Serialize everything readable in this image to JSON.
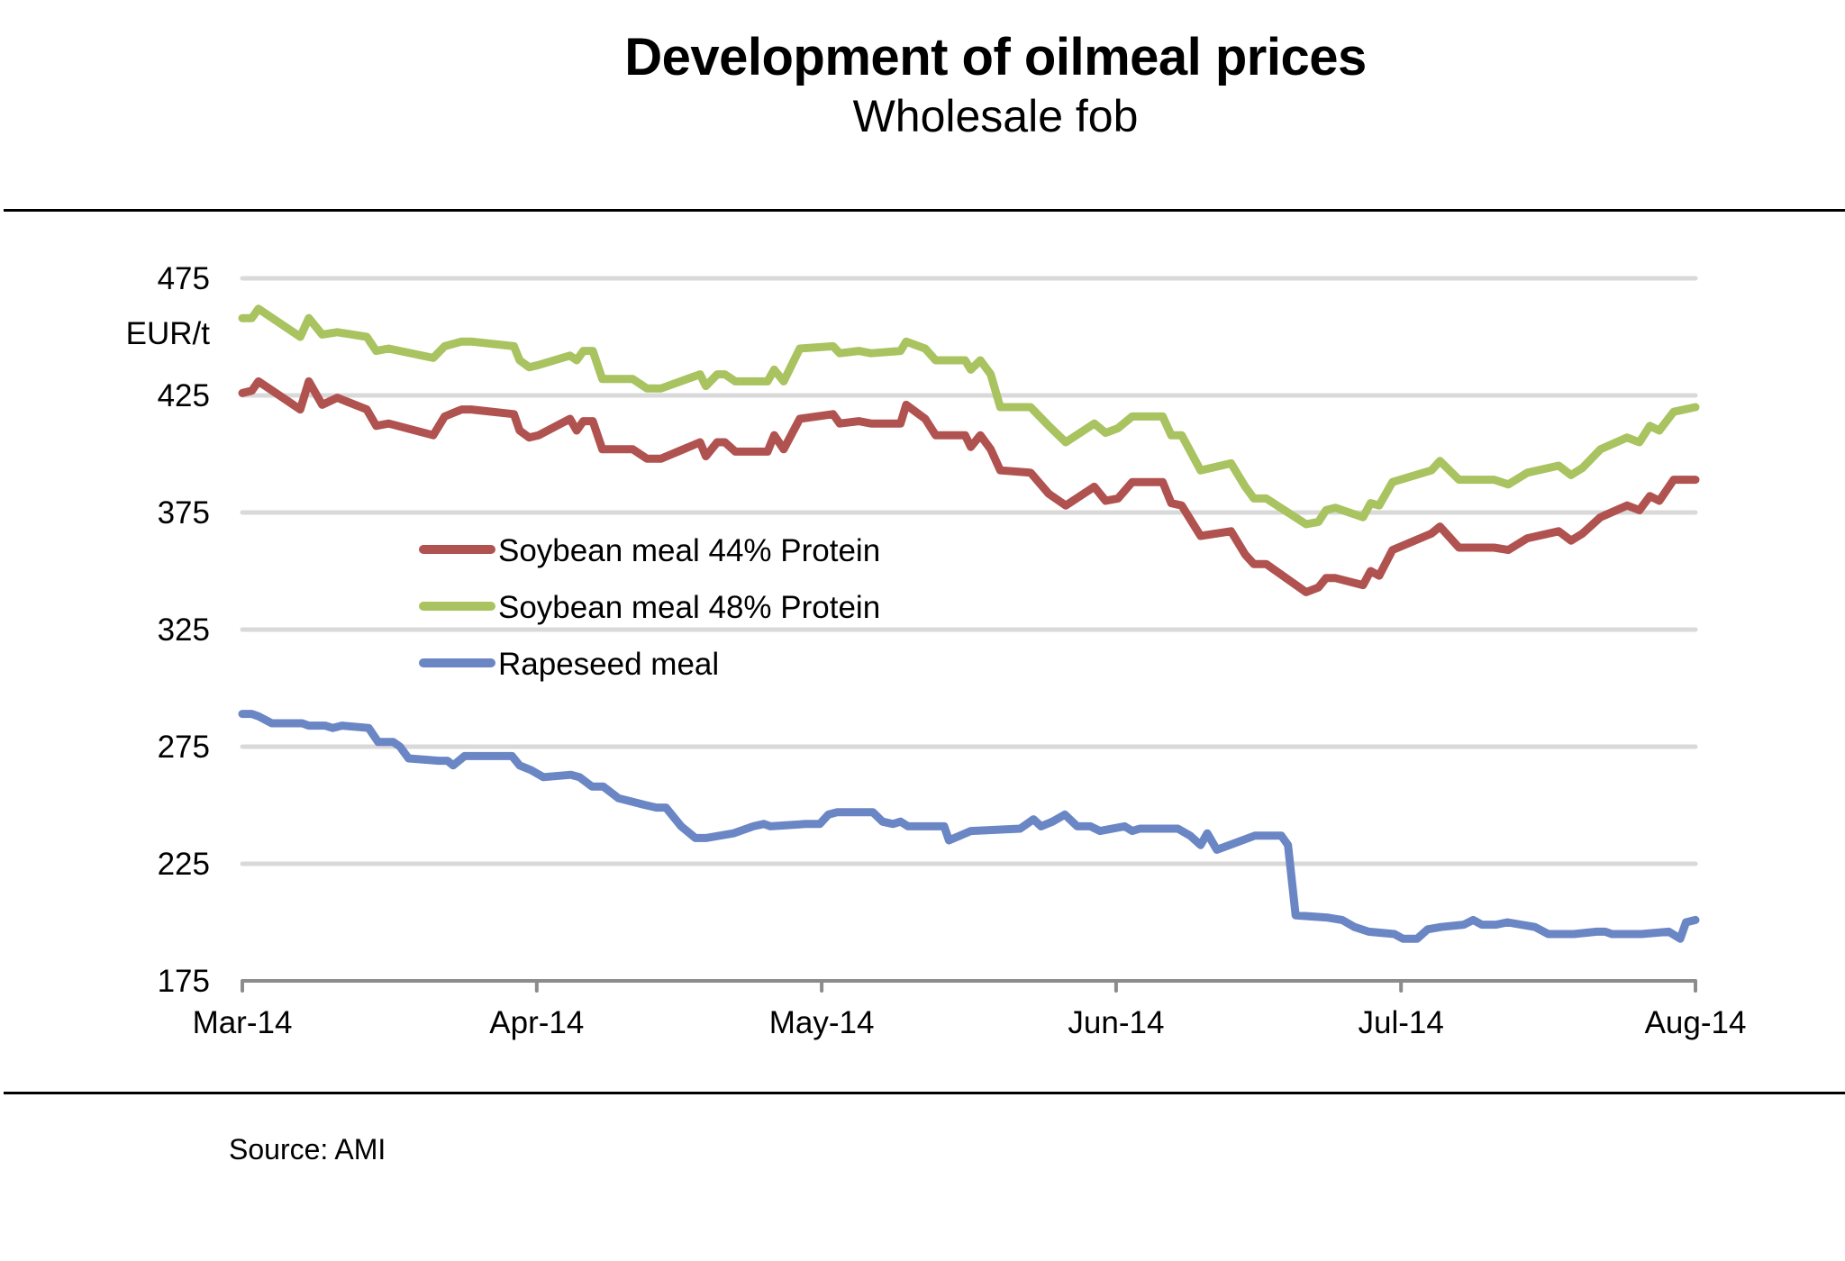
{
  "chart_data": {
    "type": "line",
    "title": "Development of oilmeal prices",
    "subtitle": "Wholesale fob",
    "ylabel": "EUR/t",
    "xlabel": "",
    "ylim": [
      175,
      475
    ],
    "yticks": [
      175,
      225,
      275,
      325,
      375,
      425,
      475
    ],
    "ytick_labels": [
      "175",
      "225",
      "275",
      "325",
      "375",
      "425",
      "475"
    ],
    "xlim_days": [
      0,
      153
    ],
    "xticks": [
      {
        "day": 0,
        "label": "Mar-14"
      },
      {
        "day": 31,
        "label": "Apr-14"
      },
      {
        "day": 61,
        "label": "May-14"
      },
      {
        "day": 92,
        "label": "Jun-14"
      },
      {
        "day": 122,
        "label": "Jul-14"
      },
      {
        "day": 153,
        "label": "Aug-14"
      }
    ],
    "grid": true,
    "legend_position": "center-left",
    "source": "Source: AMI",
    "series": [
      {
        "name": "Soybean meal 44% Protein",
        "color": "#b05250",
        "points": [
          [
            0,
            426
          ],
          [
            1,
            427
          ],
          [
            1.7,
            431
          ],
          [
            6.1,
            419
          ],
          [
            7,
            431
          ],
          [
            8.4,
            421
          ],
          [
            10,
            424
          ],
          [
            13.1,
            419
          ],
          [
            14.1,
            412
          ],
          [
            15.4,
            413
          ],
          [
            20.1,
            408
          ],
          [
            21.3,
            416
          ],
          [
            23.1,
            419
          ],
          [
            24.1,
            419
          ],
          [
            28.6,
            417
          ],
          [
            29.2,
            410
          ],
          [
            30.2,
            407
          ],
          [
            31.2,
            408
          ],
          [
            34.5,
            415
          ],
          [
            35.2,
            410
          ],
          [
            35.9,
            414
          ],
          [
            36.9,
            414
          ],
          [
            37.9,
            402
          ],
          [
            41.1,
            402
          ],
          [
            42.6,
            398
          ],
          [
            44.1,
            398
          ],
          [
            48.2,
            405
          ],
          [
            48.8,
            399
          ],
          [
            50,
            405
          ],
          [
            50.8,
            405
          ],
          [
            51.9,
            401
          ],
          [
            55.3,
            401
          ],
          [
            56,
            408
          ],
          [
            57,
            402
          ],
          [
            58.7,
            415
          ],
          [
            62.2,
            417
          ],
          [
            62.9,
            413
          ],
          [
            64.9,
            414
          ],
          [
            66.2,
            413
          ],
          [
            69.3,
            413
          ],
          [
            69.9,
            421
          ],
          [
            71.9,
            415
          ],
          [
            73,
            408
          ],
          [
            76.1,
            408
          ],
          [
            76.7,
            403
          ],
          [
            77.7,
            408
          ],
          [
            78.8,
            402
          ],
          [
            79.8,
            393
          ],
          [
            83,
            392
          ],
          [
            84.9,
            383
          ],
          [
            86.7,
            378
          ],
          [
            89.7,
            386
          ],
          [
            90.9,
            380
          ],
          [
            92.2,
            381
          ],
          [
            93.7,
            388
          ],
          [
            96.9,
            388
          ],
          [
            97.8,
            379
          ],
          [
            98.9,
            378
          ],
          [
            100.9,
            365
          ],
          [
            104.1,
            367
          ],
          [
            105.6,
            357
          ],
          [
            106.5,
            353
          ],
          [
            107.8,
            353
          ],
          [
            112,
            341
          ],
          [
            113.3,
            343
          ],
          [
            114.1,
            347
          ],
          [
            115.1,
            347
          ],
          [
            118,
            344
          ],
          [
            118.8,
            350
          ],
          [
            119.7,
            348
          ],
          [
            121.1,
            359
          ],
          [
            125.2,
            366
          ],
          [
            126.1,
            369
          ],
          [
            128.1,
            360
          ],
          [
            131.8,
            360
          ],
          [
            133.3,
            359
          ],
          [
            135.3,
            364
          ],
          [
            138.6,
            367
          ],
          [
            139.9,
            363
          ],
          [
            141.1,
            366
          ],
          [
            143,
            373
          ],
          [
            145.8,
            378
          ],
          [
            147.1,
            376
          ],
          [
            148.2,
            382
          ],
          [
            149.2,
            380
          ],
          [
            150.7,
            389
          ],
          [
            153,
            389
          ]
        ]
      },
      {
        "name": "Soybean meal 48% Protein",
        "color": "#a8c35f",
        "points": [
          [
            0,
            458
          ],
          [
            1,
            458
          ],
          [
            1.7,
            462
          ],
          [
            6.1,
            450
          ],
          [
            7,
            458
          ],
          [
            8.4,
            451
          ],
          [
            10,
            452
          ],
          [
            13.1,
            450
          ],
          [
            14.1,
            444
          ],
          [
            15.4,
            445
          ],
          [
            20.1,
            441
          ],
          [
            21.3,
            446
          ],
          [
            23.1,
            448
          ],
          [
            24.1,
            448
          ],
          [
            28.6,
            446
          ],
          [
            29.2,
            440
          ],
          [
            30.2,
            437
          ],
          [
            31.2,
            438
          ],
          [
            34.5,
            442
          ],
          [
            35.2,
            440
          ],
          [
            35.9,
            444
          ],
          [
            36.9,
            444
          ],
          [
            37.9,
            432
          ],
          [
            41.1,
            432
          ],
          [
            42.6,
            428
          ],
          [
            44.1,
            428
          ],
          [
            48.2,
            434
          ],
          [
            48.8,
            429
          ],
          [
            50,
            434
          ],
          [
            50.8,
            434
          ],
          [
            51.9,
            431
          ],
          [
            55.3,
            431
          ],
          [
            56,
            436
          ],
          [
            57,
            431
          ],
          [
            58.7,
            445
          ],
          [
            62.2,
            446
          ],
          [
            62.9,
            443
          ],
          [
            64.9,
            444
          ],
          [
            66.2,
            443
          ],
          [
            69.3,
            444
          ],
          [
            69.9,
            448
          ],
          [
            71.9,
            445
          ],
          [
            73,
            440
          ],
          [
            76.1,
            440
          ],
          [
            76.7,
            436
          ],
          [
            77.7,
            440
          ],
          [
            78.8,
            434
          ],
          [
            79.8,
            420
          ],
          [
            83,
            420
          ],
          [
            84.9,
            412
          ],
          [
            86.7,
            405
          ],
          [
            89.7,
            413
          ],
          [
            90.9,
            409
          ],
          [
            92.2,
            411
          ],
          [
            93.7,
            416
          ],
          [
            96.9,
            416
          ],
          [
            97.8,
            408
          ],
          [
            98.9,
            408
          ],
          [
            100.9,
            393
          ],
          [
            104.1,
            396
          ],
          [
            105.6,
            386
          ],
          [
            106.5,
            381
          ],
          [
            107.8,
            381
          ],
          [
            112,
            370
          ],
          [
            113.3,
            371
          ],
          [
            114.1,
            376
          ],
          [
            115.1,
            377
          ],
          [
            118,
            373
          ],
          [
            118.8,
            379
          ],
          [
            119.7,
            378
          ],
          [
            121.1,
            388
          ],
          [
            125.2,
            393
          ],
          [
            126.1,
            397
          ],
          [
            128.1,
            389
          ],
          [
            131.8,
            389
          ],
          [
            133.3,
            387
          ],
          [
            135.3,
            392
          ],
          [
            138.6,
            395
          ],
          [
            139.9,
            391
          ],
          [
            141.1,
            394
          ],
          [
            143,
            402
          ],
          [
            145.8,
            407
          ],
          [
            147.1,
            405
          ],
          [
            148.2,
            412
          ],
          [
            149.2,
            410
          ],
          [
            150.7,
            418
          ],
          [
            153,
            420
          ]
        ]
      },
      {
        "name": "Rapeseed meal",
        "color": "#6b86c4",
        "points": [
          [
            0,
            289
          ],
          [
            1,
            289
          ],
          [
            1.7,
            288
          ],
          [
            3.1,
            285
          ],
          [
            6.3,
            285
          ],
          [
            7,
            284
          ],
          [
            8.7,
            284
          ],
          [
            9.5,
            283
          ],
          [
            10.5,
            284
          ],
          [
            13.3,
            283
          ],
          [
            14.3,
            277
          ],
          [
            15.9,
            277
          ],
          [
            16.6,
            275
          ],
          [
            17.5,
            270
          ],
          [
            20.7,
            269
          ],
          [
            21.6,
            269
          ],
          [
            22.2,
            267
          ],
          [
            23.4,
            271
          ],
          [
            28.4,
            271
          ],
          [
            29.2,
            267
          ],
          [
            30.4,
            265
          ],
          [
            31.7,
            262
          ],
          [
            34.6,
            263
          ],
          [
            35.5,
            262
          ],
          [
            36.8,
            258
          ],
          [
            38,
            258
          ],
          [
            39.6,
            253
          ],
          [
            42.5,
            250
          ],
          [
            43.6,
            249
          ],
          [
            44.6,
            249
          ],
          [
            46.2,
            241
          ],
          [
            47.7,
            236
          ],
          [
            48.8,
            236
          ],
          [
            51.7,
            238
          ],
          [
            53.8,
            241
          ],
          [
            54.9,
            242
          ],
          [
            55.6,
            241
          ],
          [
            59.3,
            242
          ],
          [
            60.8,
            242
          ],
          [
            61.7,
            246
          ],
          [
            62.6,
            247
          ],
          [
            66.4,
            247
          ],
          [
            67.4,
            243
          ],
          [
            68.5,
            242
          ],
          [
            69.3,
            243
          ],
          [
            70.1,
            241
          ],
          [
            73.9,
            241
          ],
          [
            74.4,
            235
          ],
          [
            76.7,
            239
          ],
          [
            81.9,
            240
          ],
          [
            83.3,
            244
          ],
          [
            84.1,
            241
          ],
          [
            85.3,
            243
          ],
          [
            86.6,
            246
          ],
          [
            87.9,
            241
          ],
          [
            89.3,
            241
          ],
          [
            90.3,
            239
          ],
          [
            92.9,
            241
          ],
          [
            93.7,
            239
          ],
          [
            94.5,
            240
          ],
          [
            98.5,
            240
          ],
          [
            99.8,
            237
          ],
          [
            100.9,
            233
          ],
          [
            101.6,
            238
          ],
          [
            102.6,
            231
          ],
          [
            103.3,
            232
          ],
          [
            106.6,
            237
          ],
          [
            109.4,
            237
          ],
          [
            110.1,
            233
          ],
          [
            110.9,
            203
          ],
          [
            114.3,
            202
          ],
          [
            115.8,
            201
          ],
          [
            117.1,
            198
          ],
          [
            118.6,
            196
          ],
          [
            121.3,
            195
          ],
          [
            122.2,
            193
          ],
          [
            123.7,
            193
          ],
          [
            124.8,
            197
          ],
          [
            126.2,
            198
          ],
          [
            128.6,
            199
          ],
          [
            129.6,
            201
          ],
          [
            130.5,
            199
          ],
          [
            132,
            199
          ],
          [
            133.2,
            200
          ],
          [
            136.1,
            198
          ],
          [
            137.5,
            195
          ],
          [
            140.2,
            195
          ],
          [
            142.6,
            196
          ],
          [
            143.5,
            196
          ],
          [
            144.2,
            195
          ],
          [
            147.3,
            195
          ],
          [
            150.2,
            196
          ],
          [
            151.4,
            193
          ],
          [
            152,
            200
          ],
          [
            153,
            201
          ]
        ]
      }
    ]
  }
}
